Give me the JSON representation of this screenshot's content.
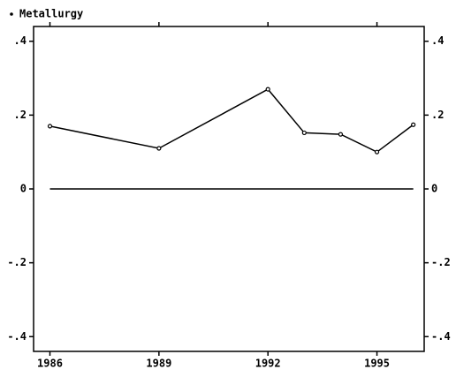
{
  "chart_data": {
    "type": "line",
    "x": [
      1986,
      1989,
      1992,
      1993,
      1994,
      1995,
      1996
    ],
    "series": [
      {
        "name": "Metallurgy",
        "color": "#000000",
        "values": [
          0.17,
          0.11,
          0.27,
          0.152,
          0.148,
          0.1,
          0.174
        ]
      }
    ],
    "xlim": [
      1985.55,
      1996.3
    ],
    "xticks": [
      1986,
      1989,
      1992,
      1995
    ],
    "ylim": [
      -0.44,
      0.44
    ],
    "yticks": [
      {
        "value": -0.4,
        "label": "-.4"
      },
      {
        "value": -0.2,
        "label": "-.2"
      },
      0,
      {
        "value": 0.2,
        "label": ".2"
      },
      {
        "value": 0.4,
        "label": ".4"
      }
    ],
    "yline": 0,
    "legend": "top-left",
    "right_axis_labels": true
  }
}
